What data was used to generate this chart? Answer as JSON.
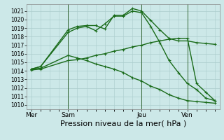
{
  "title": "Pression niveau de la mer( hPa )",
  "bg_color": "#cce8e8",
  "grid_color": "#aacccc",
  "line_color": "#1a6b1a",
  "ylim": [
    1009.5,
    1021.8
  ],
  "yticks": [
    1010,
    1011,
    1012,
    1013,
    1014,
    1015,
    1016,
    1017,
    1018,
    1019,
    1020,
    1021
  ],
  "ylabel_fontsize": 6,
  "xlabel_fontsize": 8,
  "xtick_labels": [
    "Mer",
    "Sam",
    "Jeu",
    "Ven"
  ],
  "xtick_positions": [
    0,
    4,
    12,
    17
  ],
  "total_points": 21,
  "series": [
    {
      "x": [
        0,
        1,
        4,
        5,
        6,
        7,
        8,
        9,
        10,
        11,
        12,
        13,
        14,
        15,
        16,
        17,
        18,
        19,
        20
      ],
      "y": [
        1014.2,
        1014.5,
        1018.8,
        1019.2,
        1019.3,
        1019.3,
        1018.9,
        1020.5,
        1020.5,
        1021.3,
        1021.0,
        1019.9,
        1018.8,
        1017.8,
        1017.5,
        1017.5,
        1017.3,
        1017.2,
        1017.1
      ]
    },
    {
      "x": [
        0,
        1,
        4,
        5,
        6,
        7,
        8,
        9,
        10,
        11,
        12,
        13,
        14,
        15,
        16,
        17,
        18,
        19,
        20
      ],
      "y": [
        1014.2,
        1014.5,
        1018.5,
        1019.0,
        1019.2,
        1018.7,
        1019.5,
        1020.4,
        1020.4,
        1021.0,
        1020.8,
        1019.2,
        1017.3,
        1015.2,
        1013.8,
        1012.5,
        1011.8,
        1010.8,
        1010.5
      ]
    },
    {
      "x": [
        0,
        1,
        4,
        5,
        6,
        7,
        8,
        9,
        10,
        11,
        12,
        13,
        14,
        15,
        16,
        17,
        18,
        19,
        20
      ],
      "y": [
        1014.1,
        1014.2,
        1015.2,
        1015.3,
        1015.5,
        1015.8,
        1016.0,
        1016.3,
        1016.5,
        1016.8,
        1017.0,
        1017.3,
        1017.5,
        1017.7,
        1017.8,
        1017.8,
        1012.5,
        1011.5,
        1010.5
      ]
    },
    {
      "x": [
        0,
        1,
        4,
        5,
        6,
        7,
        8,
        9,
        10,
        11,
        12,
        13,
        14,
        15,
        16,
        17,
        18,
        19,
        20
      ],
      "y": [
        1014.2,
        1014.3,
        1015.8,
        1015.5,
        1015.2,
        1014.8,
        1014.5,
        1014.2,
        1013.8,
        1013.2,
        1012.8,
        1012.2,
        1011.8,
        1011.2,
        1010.8,
        1010.5,
        1010.4,
        1010.3,
        1010.2
      ]
    }
  ],
  "vlines_x": [
    4,
    12,
    17
  ],
  "marker": "+",
  "markersize": 3.5,
  "linewidth": 1.0
}
